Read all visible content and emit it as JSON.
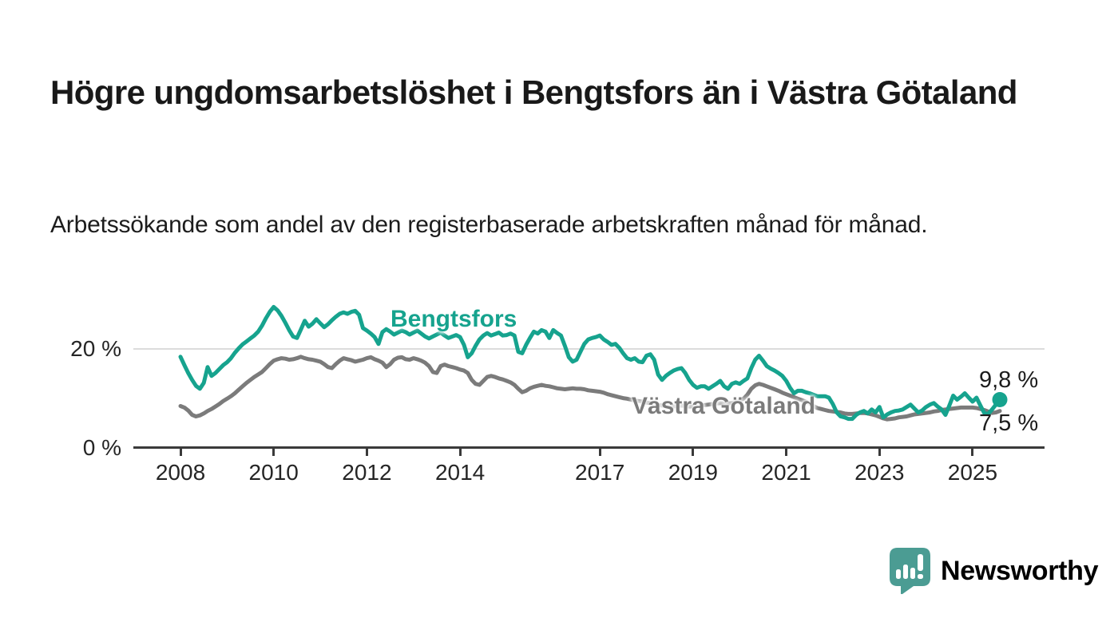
{
  "header": {
    "title": "Högre ungdomsarbetslöshet i Bengtsfors än i Västra Götaland",
    "subtitle": "Arbetssökande som andel av den registerbaserade arbetskraften månad för månad."
  },
  "branding": {
    "name": "Newsworthy",
    "icon": "bar-chart-speech-bubble-icon",
    "color": "#4b9c93"
  },
  "chart_data": {
    "type": "line",
    "title": "Högre ungdomsarbetslöshet i Bengtsfors än i Västra Götaland",
    "unit": "%",
    "frequency": "monthly",
    "x_start": "2008-01",
    "x_end": "2025-08",
    "ylim": [
      0,
      30
    ],
    "grid_y_values": [
      20
    ],
    "legend_position": "inline-labels",
    "x_ticks": [
      {
        "label": "2008",
        "year": 2008
      },
      {
        "label": "2010",
        "year": 2010
      },
      {
        "label": "2012",
        "year": 2012
      },
      {
        "label": "2014",
        "year": 2014
      },
      {
        "label": "2017",
        "year": 2017
      },
      {
        "label": "2019",
        "year": 2019
      },
      {
        "label": "2021",
        "year": 2021
      },
      {
        "label": "2023",
        "year": 2023
      },
      {
        "label": "2025",
        "year": 2025
      }
    ],
    "y_ticks": [
      {
        "value": 20,
        "label": "20 %"
      },
      {
        "value": 0,
        "label": "0 %"
      }
    ],
    "series": [
      {
        "name": "Bengtsfors",
        "color": "#16a38e",
        "end_value": 9.8,
        "end_label": "9,8 %",
        "end_dot": true,
        "values": [
          18.5,
          16.8,
          15.2,
          13.8,
          12.6,
          12.0,
          13.2,
          16.4,
          14.6,
          15.2,
          16.0,
          16.8,
          17.4,
          18.2,
          19.3,
          20.2,
          21.0,
          21.6,
          22.2,
          22.8,
          23.6,
          24.8,
          26.3,
          27.6,
          28.6,
          27.9,
          26.8,
          25.4,
          23.9,
          22.6,
          22.3,
          24.0,
          25.8,
          24.6,
          25.2,
          26.1,
          25.3,
          24.5,
          25.1,
          25.9,
          26.6,
          27.2,
          27.5,
          27.2,
          27.6,
          27.8,
          27.0,
          24.3,
          23.8,
          23.2,
          22.5,
          21.1,
          23.5,
          24.1,
          23.6,
          23.0,
          23.4,
          23.8,
          23.5,
          23.0,
          23.4,
          23.8,
          23.2,
          22.6,
          22.2,
          22.6,
          23.0,
          23.4,
          22.8,
          22.3,
          22.6,
          22.9,
          22.5,
          20.9,
          18.4,
          19.2,
          20.7,
          22.0,
          22.8,
          23.3,
          22.8,
          23.1,
          23.4,
          22.8,
          22.9,
          23.2,
          22.8,
          19.5,
          19.2,
          20.9,
          22.3,
          23.6,
          23.2,
          23.9,
          23.6,
          22.3,
          23.9,
          23.3,
          22.8,
          20.7,
          18.4,
          17.5,
          17.9,
          19.5,
          21.1,
          22.0,
          22.3,
          22.5,
          22.8,
          22.0,
          21.5,
          20.9,
          21.1,
          20.3,
          19.2,
          18.2,
          17.9,
          18.2,
          17.5,
          17.4,
          18.7,
          19.0,
          17.9,
          14.9,
          13.8,
          14.6,
          15.2,
          15.7,
          16.0,
          16.2,
          15.2,
          13.8,
          12.8,
          12.2,
          12.5,
          12.5,
          12.0,
          12.5,
          13.0,
          13.6,
          12.5,
          12.0,
          13.0,
          13.3,
          13.0,
          13.6,
          14.1,
          16.2,
          17.9,
          18.7,
          17.7,
          16.6,
          16.1,
          15.7,
          15.2,
          14.6,
          13.6,
          12.2,
          11.1,
          11.6,
          11.6,
          11.3,
          11.1,
          10.8,
          10.5,
          10.5,
          10.5,
          10.2,
          8.9,
          7.2,
          6.4,
          6.2,
          5.9,
          5.9,
          6.7,
          7.2,
          7.5,
          7.0,
          7.8,
          7.2,
          8.3,
          6.2,
          6.8,
          7.2,
          7.5,
          7.6,
          7.8,
          8.3,
          8.8,
          8.0,
          7.2,
          7.6,
          8.3,
          8.8,
          9.1,
          8.4,
          7.8,
          6.7,
          8.6,
          10.6,
          9.8,
          10.4,
          11.1,
          10.2,
          9.4,
          10.2,
          8.6,
          7.1,
          6.9,
          7.8,
          8.8,
          9.8
        ]
      },
      {
        "name": "Västra Götaland",
        "color": "#7b7b7b",
        "end_value": 7.5,
        "end_label": "7,5 %",
        "end_dot": false,
        "values": [
          8.5,
          8.2,
          7.6,
          6.7,
          6.4,
          6.6,
          7.0,
          7.5,
          7.9,
          8.4,
          8.9,
          9.5,
          10.0,
          10.5,
          11.1,
          11.8,
          12.5,
          13.2,
          13.8,
          14.4,
          14.9,
          15.4,
          16.2,
          17.0,
          17.7,
          18.0,
          18.2,
          18.1,
          17.9,
          18.0,
          18.2,
          18.5,
          18.2,
          18.0,
          17.9,
          17.7,
          17.5,
          17.0,
          16.4,
          16.2,
          17.0,
          17.7,
          18.2,
          18.0,
          17.8,
          17.5,
          17.7,
          17.9,
          18.2,
          18.4,
          18.0,
          17.7,
          17.3,
          16.4,
          17.0,
          17.9,
          18.3,
          18.4,
          18.0,
          17.9,
          18.2,
          18.0,
          17.7,
          17.3,
          16.6,
          15.4,
          15.2,
          16.6,
          16.9,
          16.6,
          16.4,
          16.2,
          15.9,
          15.7,
          15.2,
          13.8,
          13.0,
          12.8,
          13.6,
          14.4,
          14.6,
          14.4,
          14.1,
          13.9,
          13.6,
          13.3,
          12.8,
          12.0,
          11.3,
          11.6,
          12.1,
          12.4,
          12.6,
          12.8,
          12.6,
          12.5,
          12.3,
          12.1,
          12.0,
          11.9,
          12.0,
          12.1,
          12.0,
          12.0,
          11.9,
          11.7,
          11.6,
          11.5,
          11.4,
          11.2,
          10.9,
          10.7,
          10.5,
          10.3,
          10.1,
          10.0,
          9.8,
          9.6,
          9.5,
          9.4,
          9.2,
          9.1,
          8.9,
          8.7,
          8.6,
          8.5,
          8.4,
          8.4,
          8.5,
          8.6,
          8.5,
          8.4,
          8.4,
          8.5,
          8.6,
          8.7,
          8.8,
          8.9,
          9.0,
          9.1,
          9.0,
          9.0,
          9.1,
          9.3,
          9.6,
          10.0,
          10.8,
          12.0,
          12.7,
          13.0,
          12.8,
          12.5,
          12.2,
          11.9,
          11.6,
          11.2,
          10.9,
          10.6,
          10.3,
          10.0,
          9.7,
          9.4,
          9.0,
          8.5,
          8.1,
          7.9,
          7.7,
          7.5,
          7.4,
          7.3,
          7.2,
          7.0,
          6.9,
          6.9,
          7.0,
          7.1,
          7.1,
          7.0,
          6.8,
          6.6,
          6.3,
          6.0,
          5.8,
          5.9,
          6.0,
          6.2,
          6.3,
          6.4,
          6.6,
          6.8,
          6.9,
          7.0,
          7.1,
          7.2,
          7.4,
          7.5,
          7.7,
          7.8,
          7.9,
          8.0,
          8.1,
          8.2,
          8.2,
          8.2,
          8.2,
          8.1,
          7.9,
          7.7,
          7.4,
          7.1,
          7.2,
          7.5
        ]
      }
    ]
  }
}
